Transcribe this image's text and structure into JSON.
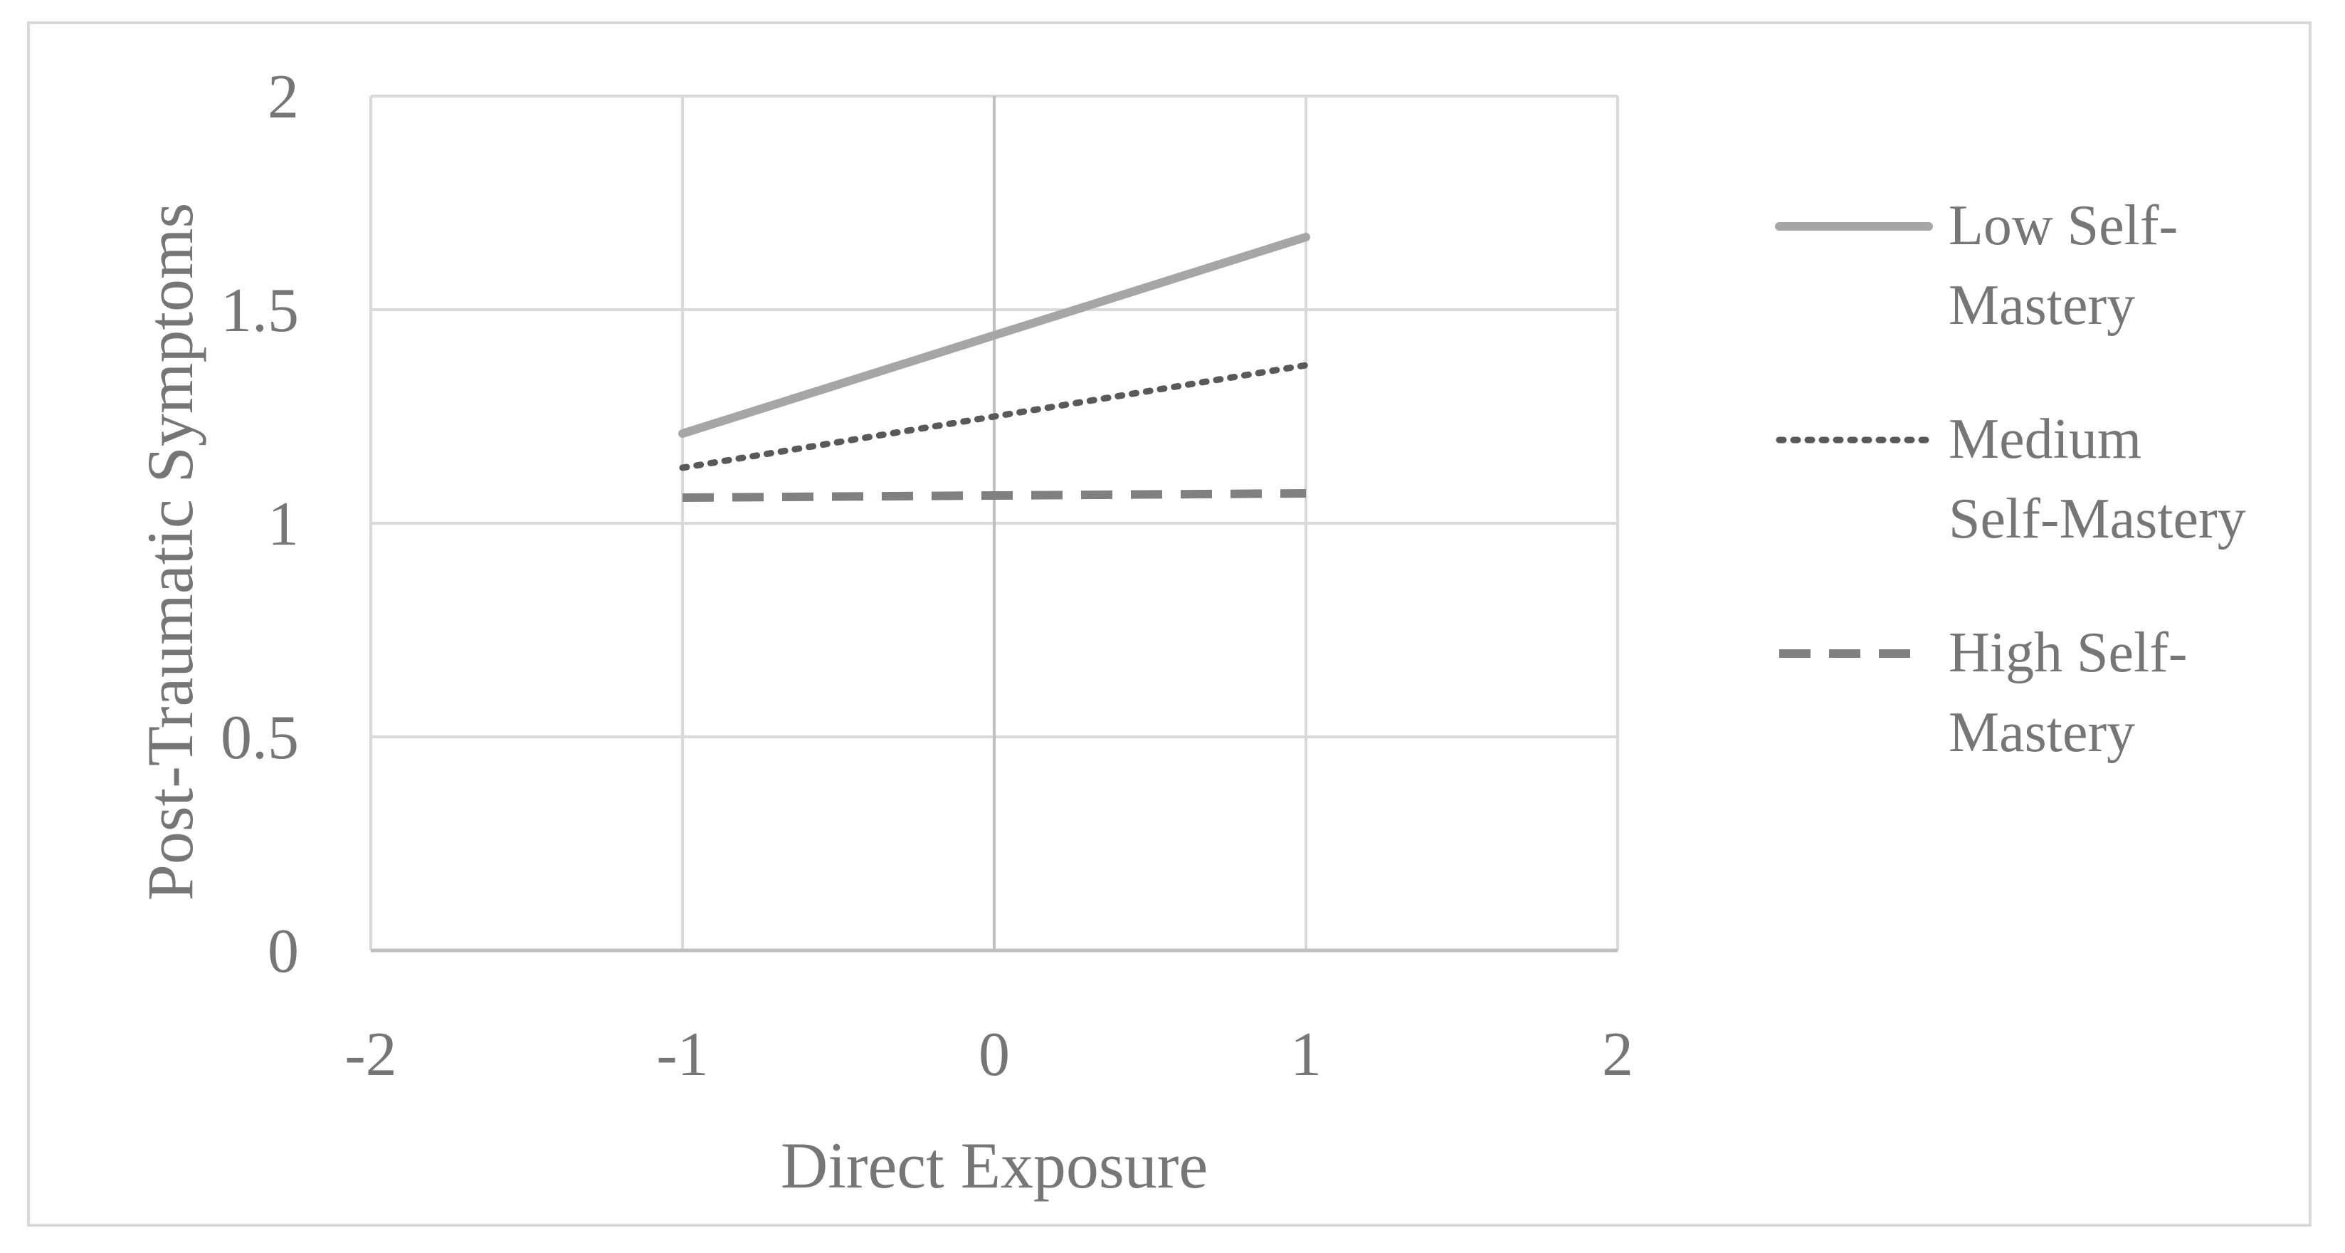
{
  "chart_data": {
    "type": "line",
    "title": "",
    "xlabel": "Direct Exposure",
    "ylabel": "Post-Traumatic Symptoms",
    "xlim": [
      -2,
      2
    ],
    "ylim": [
      0,
      2
    ],
    "x_ticks": [
      "-2",
      "-1",
      "0",
      "1",
      "2"
    ],
    "y_ticks": [
      "0",
      "0.5",
      "1",
      "1.5",
      "2"
    ],
    "grid": true,
    "legend_position": "right",
    "series": [
      {
        "name": "Low Self-Mastery",
        "legend_lines": [
          "Low Self-",
          "Mastery"
        ],
        "style": "solid",
        "color": "#a6a6a6",
        "x": [
          -1,
          1
        ],
        "y": [
          1.21,
          1.67
        ]
      },
      {
        "name": "Medium Self-Mastery",
        "legend_lines": [
          "Medium",
          "Self-Mastery"
        ],
        "style": "dotted",
        "color": "#595959",
        "x": [
          -1,
          1
        ],
        "y": [
          1.13,
          1.37
        ]
      },
      {
        "name": "High Self-Mastery",
        "legend_lines": [
          "High Self-",
          "Mastery"
        ],
        "style": "dashed",
        "color": "#808080",
        "x": [
          -1,
          1
        ],
        "y": [
          1.06,
          1.07
        ]
      }
    ]
  }
}
